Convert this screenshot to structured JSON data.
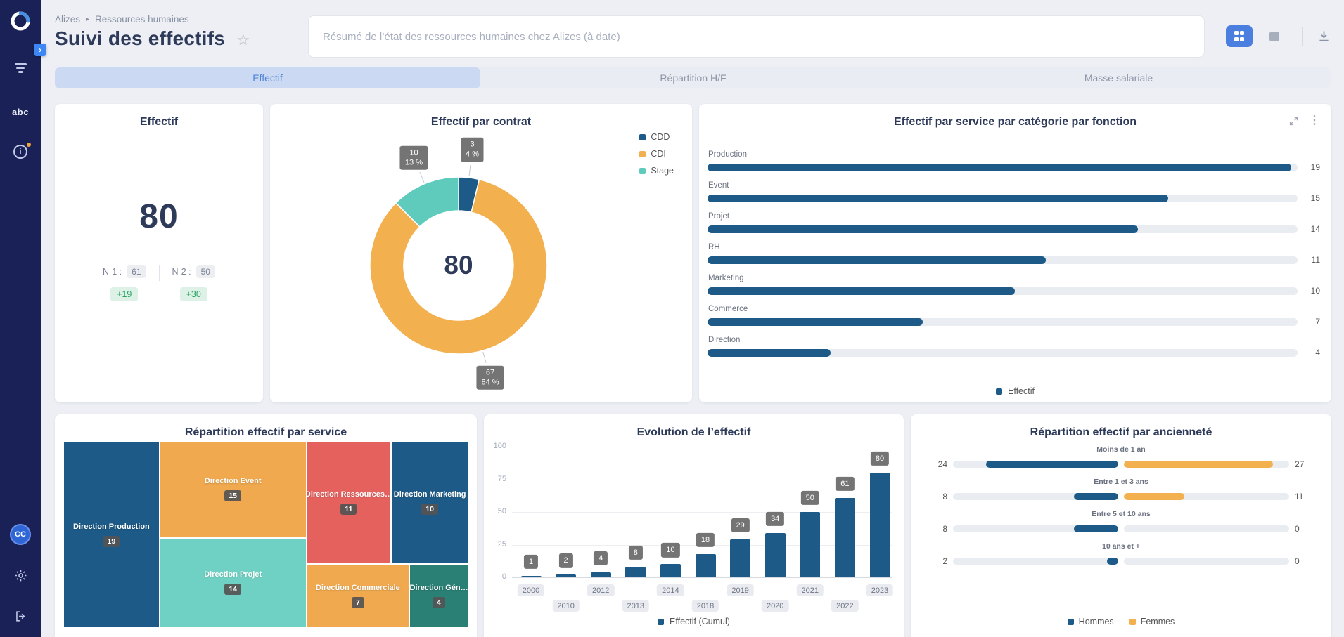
{
  "header": {
    "breadcrumb": [
      "Alizes",
      "Ressources humaines"
    ],
    "title": "Suivi des effectifs",
    "summary_placeholder": "Résumé de l’état des ressources humaines chez Alizes (à date)"
  },
  "sidebar": {
    "avatar_initials": "CC",
    "abc_label": "abc"
  },
  "icon_glyphs": {
    "star": "☆",
    "breadcrumb_sep": "▸",
    "kebab": "⋮",
    "chevron_right": "›",
    "info": "i"
  },
  "colors": {
    "primary_bar": "#1d5a87",
    "orange": "#f2b04f",
    "teal": "#5ecbbd",
    "coral": "#e5615e",
    "accent_blue": "#4a7fe0",
    "positive_green": "#2aa365"
  },
  "tabs": {
    "items": [
      {
        "label": "Effectif",
        "active": true
      },
      {
        "label": "Répartition H/F",
        "active": false
      },
      {
        "label": "Masse salariale",
        "active": false
      }
    ]
  },
  "kpi": {
    "title": "Effectif",
    "value": "80",
    "comparisons": [
      {
        "label": "N-1 :",
        "value": "61",
        "delta": "+19"
      },
      {
        "label": "N-2 :",
        "value": "50",
        "delta": "+30"
      }
    ]
  },
  "chart_data": [
    {
      "id": "effectif-par-contrat",
      "type": "pie",
      "title": "Effectif par contrat",
      "center_value": "80",
      "total": 80,
      "slices": [
        {
          "label": "CDD",
          "value": 3,
          "pct_label": "4 %",
          "color": "#1d5a87"
        },
        {
          "label": "CDI",
          "value": 67,
          "pct_label": "84 %",
          "color": "#f2b04f"
        },
        {
          "label": "Stage",
          "value": 10,
          "pct_label": "13 %",
          "color": "#5ecbbd"
        }
      ],
      "legend_position": "top-right"
    },
    {
      "id": "effectif-par-service",
      "type": "bar",
      "orientation": "horizontal",
      "title": "Effectif par service par catégorie par fonction",
      "categories": [
        "Production",
        "Event",
        "Projet",
        "RH",
        "Marketing",
        "Commerce",
        "Direction"
      ],
      "values": [
        19,
        15,
        14,
        11,
        10,
        7,
        4
      ],
      "series_name": "Effectif",
      "color": "#1d5a87",
      "xlim": [
        0,
        19.2
      ],
      "legend_position": "bottom"
    },
    {
      "id": "repartition-effectif-par-service",
      "type": "treemap",
      "title": "Répartition effectif par service",
      "items": [
        {
          "label": "Direction Production",
          "value": 19,
          "color": "#1d5a87"
        },
        {
          "label": "Direction Event",
          "value": 15,
          "color": "#f0a94f"
        },
        {
          "label": "Direction Projet",
          "value": 14,
          "color": "#6fd1c3"
        },
        {
          "label": "Direction Ressources…",
          "value": 11,
          "color": "#e5615e"
        },
        {
          "label": "Direction Marketing",
          "value": 10,
          "color": "#1d5a87"
        },
        {
          "label": "Direction Commerciale",
          "value": 7,
          "color": "#f0a94f"
        },
        {
          "label": "Direction Gén…",
          "value": 4,
          "color": "#2b8076"
        }
      ]
    },
    {
      "id": "evolution-effectif",
      "type": "bar",
      "orientation": "vertical",
      "title": "Evolution de l’effectif",
      "categories": [
        "2000",
        "2010",
        "2012",
        "2013",
        "2014",
        "2018",
        "2019",
        "2020",
        "2021",
        "2022",
        "2023"
      ],
      "values": [
        1,
        2,
        4,
        8,
        10,
        18,
        29,
        34,
        50,
        61,
        80
      ],
      "series_name": "Effectif (Cumul)",
      "color": "#1d5a87",
      "ylim": [
        0,
        100
      ],
      "yticks": [
        0,
        25,
        50,
        75,
        100
      ],
      "grid": true,
      "legend_position": "bottom"
    },
    {
      "id": "repartition-effectif-par-anciennete",
      "type": "bar",
      "variant": "tornado",
      "title": "Répartition effectif par ancienneté",
      "categories": [
        "Moins de 1 an",
        "Entre 1 et 3 ans",
        "Entre 5 et 10 ans",
        "10 ans et +"
      ],
      "series": [
        {
          "name": "Hommes",
          "values": [
            24,
            8,
            8,
            2
          ],
          "color": "#1d5a87"
        },
        {
          "name": "Femmes",
          "values": [
            27,
            11,
            0,
            0
          ],
          "color": "#f2b04f"
        }
      ],
      "xlim": [
        0,
        30
      ],
      "legend_position": "bottom"
    }
  ]
}
